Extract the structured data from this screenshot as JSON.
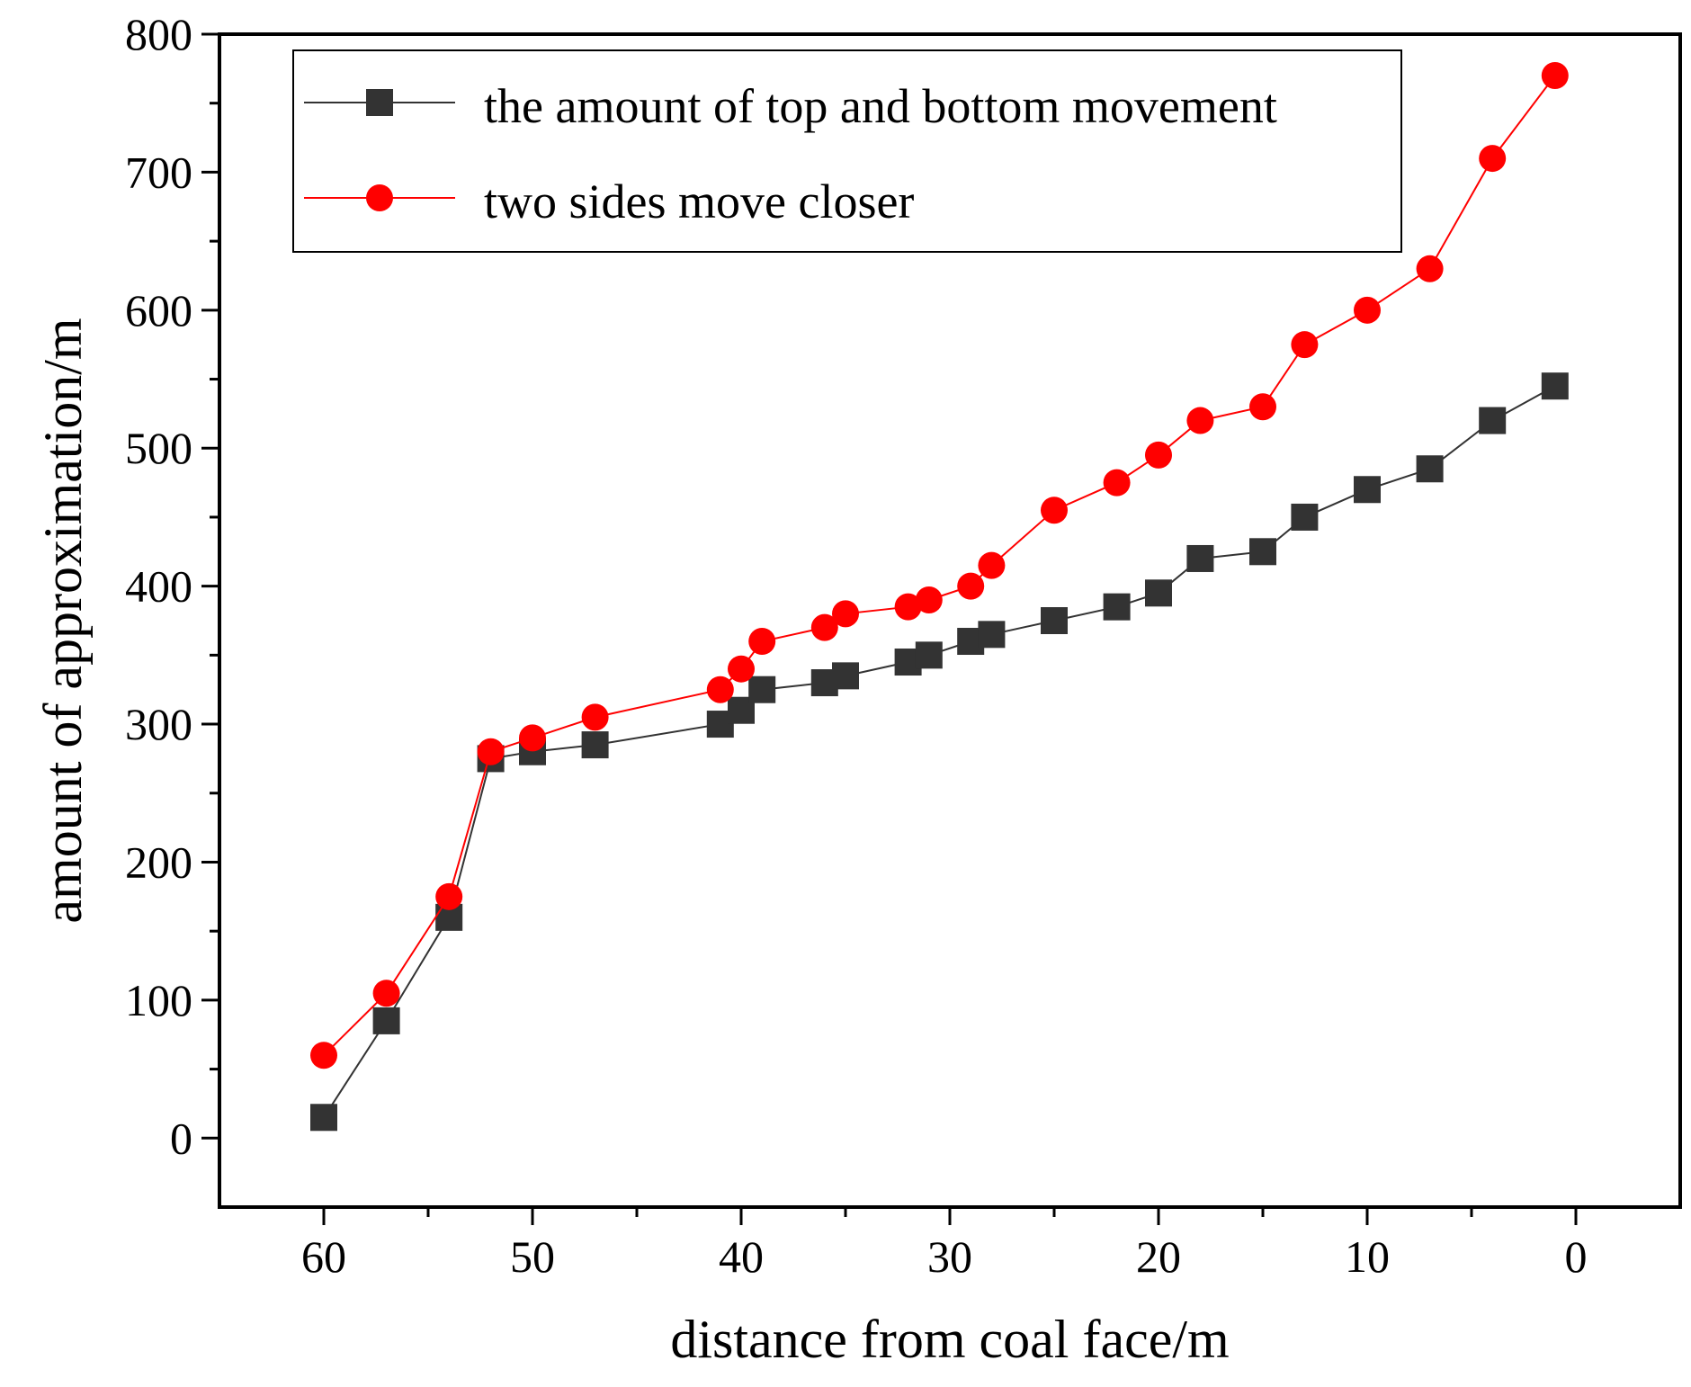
{
  "chart_data": {
    "type": "line",
    "xlabel": "distance from coal face/m",
    "ylabel": "amount of approximation/m",
    "xlim": [
      65,
      -5
    ],
    "ylim": [
      -50,
      800
    ],
    "x_reversed": true,
    "xticks": [
      60,
      50,
      40,
      30,
      20,
      10,
      0
    ],
    "yticks": [
      0,
      100,
      200,
      300,
      400,
      500,
      600,
      700,
      800
    ],
    "grid": false,
    "legend_position": "top",
    "series": [
      {
        "name": "the amount of top and bottom movement",
        "color": "#333333",
        "marker": "square",
        "x": [
          60,
          57,
          54,
          52,
          50,
          47,
          41,
          40,
          39,
          36,
          35,
          32,
          31,
          29,
          28,
          25,
          22,
          20,
          18,
          15,
          13,
          10,
          7,
          4,
          1
        ],
        "y": [
          15,
          85,
          160,
          275,
          280,
          285,
          300,
          310,
          325,
          330,
          335,
          345,
          350,
          360,
          365,
          375,
          385,
          395,
          420,
          425,
          450,
          470,
          485,
          520,
          545
        ]
      },
      {
        "name": "two sides move closer",
        "color": "#ff0000",
        "marker": "circle",
        "x": [
          60,
          57,
          54,
          52,
          50,
          47,
          41,
          40,
          39,
          36,
          35,
          32,
          31,
          29,
          28,
          25,
          22,
          20,
          18,
          15,
          13,
          10,
          7,
          4,
          1
        ],
        "y": [
          60,
          105,
          175,
          280,
          290,
          305,
          325,
          340,
          360,
          370,
          380,
          385,
          390,
          400,
          415,
          455,
          475,
          495,
          520,
          530,
          575,
          600,
          630,
          710,
          770
        ]
      }
    ]
  }
}
